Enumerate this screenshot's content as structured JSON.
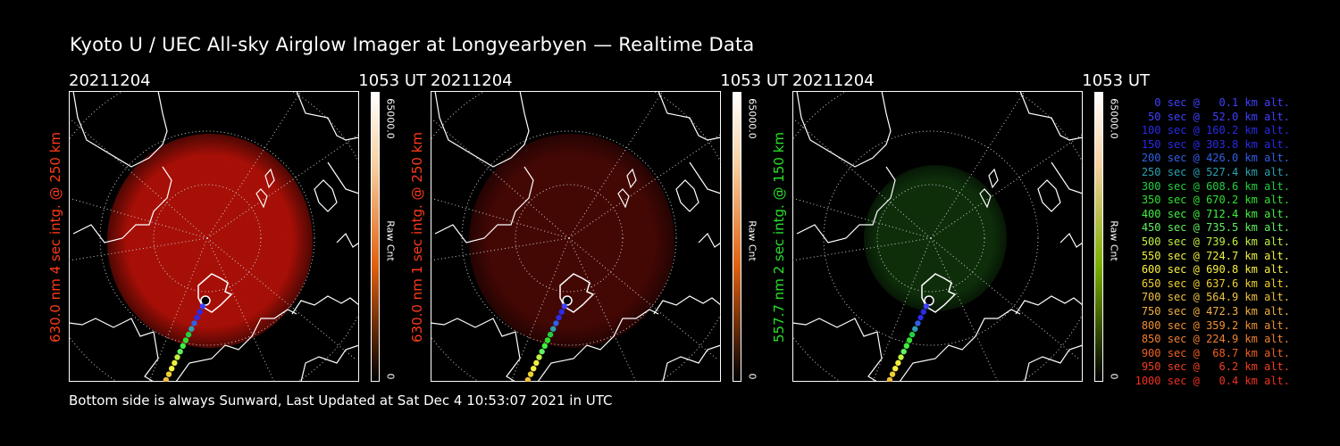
{
  "title": "Kyoto U / UEC All-sky Airglow Imager at Longyearbyen — Realtime Data",
  "footer": "Bottom side is always Sunward, Last Updated at Sat Dec  4 10:53:07 2021 in UTC",
  "panels": [
    {
      "date": "20211204",
      "time": "1053 UT",
      "ylabel": "630.0 nm 4 sec intg. @ 250 km",
      "label_color": "#ff3a1a",
      "cbar_max": "65000.0",
      "cbar_unit": "Raw Cnt",
      "cbar_min": "0",
      "cbar_color": "#e06010",
      "glow_color": "#c41208",
      "glow_strength": 0.85
    },
    {
      "date": "20211204",
      "time": "1053 UT",
      "ylabel": "630.0 nm 1 sec intg. @ 250 km",
      "label_color": "#ff3a1a",
      "cbar_max": "65000.0",
      "cbar_unit": "Raw Cnt",
      "cbar_min": "0",
      "cbar_color": "#e06010",
      "glow_color": "#5a0a06",
      "glow_strength": 0.75
    },
    {
      "date": "20211204",
      "time": "1053 UT",
      "ylabel": "557.7 nm 2 sec intg. @ 150 km",
      "label_color": "#29e029",
      "cbar_max": "65000.0",
      "cbar_unit": "Raw Cnt",
      "cbar_min": "0",
      "cbar_color": "#7ab000",
      "glow_color": "#113a0d",
      "glow_strength": 0.8
    }
  ],
  "legend": [
    {
      "text": "0 sec @   0.1 km alt.",
      "color": "#4040ff"
    },
    {
      "text": "50 sec @  52.0 km alt.",
      "color": "#4040ff"
    },
    {
      "text": "100 sec @ 160.2 km alt.",
      "color": "#2a2ae8"
    },
    {
      "text": "150 sec @ 303.8 km alt.",
      "color": "#2a2ae8"
    },
    {
      "text": "200 sec @ 426.0 km alt.",
      "color": "#3060e8"
    },
    {
      "text": "250 sec @ 527.4 km alt.",
      "color": "#2aa0b0"
    },
    {
      "text": "300 sec @ 608.6 km alt.",
      "color": "#20d040"
    },
    {
      "text": "350 sec @ 670.2 km alt.",
      "color": "#30e030"
    },
    {
      "text": "400 sec @ 712.4 km alt.",
      "color": "#40f040"
    },
    {
      "text": "450 sec @ 735.5 km alt.",
      "color": "#60f060"
    },
    {
      "text": "500 sec @ 739.6 km alt.",
      "color": "#c0f040"
    },
    {
      "text": "550 sec @ 724.7 km alt.",
      "color": "#f0f040"
    },
    {
      "text": "600 sec @ 690.8 km alt.",
      "color": "#f8f040"
    },
    {
      "text": "650 sec @ 637.6 km alt.",
      "color": "#f0d030"
    },
    {
      "text": "700 sec @ 564.9 km alt.",
      "color": "#f0c040"
    },
    {
      "text": "750 sec @ 472.3 km alt.",
      "color": "#f0b040"
    },
    {
      "text": "800 sec @ 359.2 km alt.",
      "color": "#f09030"
    },
    {
      "text": "850 sec @ 224.9 km alt.",
      "color": "#f08030"
    },
    {
      "text": "900 sec @  68.7 km alt.",
      "color": "#f06020"
    },
    {
      "text": "950 sec @   6.2 km alt.",
      "color": "#f04020"
    },
    {
      "text": "1000 sec @   0.4 km alt.",
      "color": "#f03020"
    }
  ]
}
